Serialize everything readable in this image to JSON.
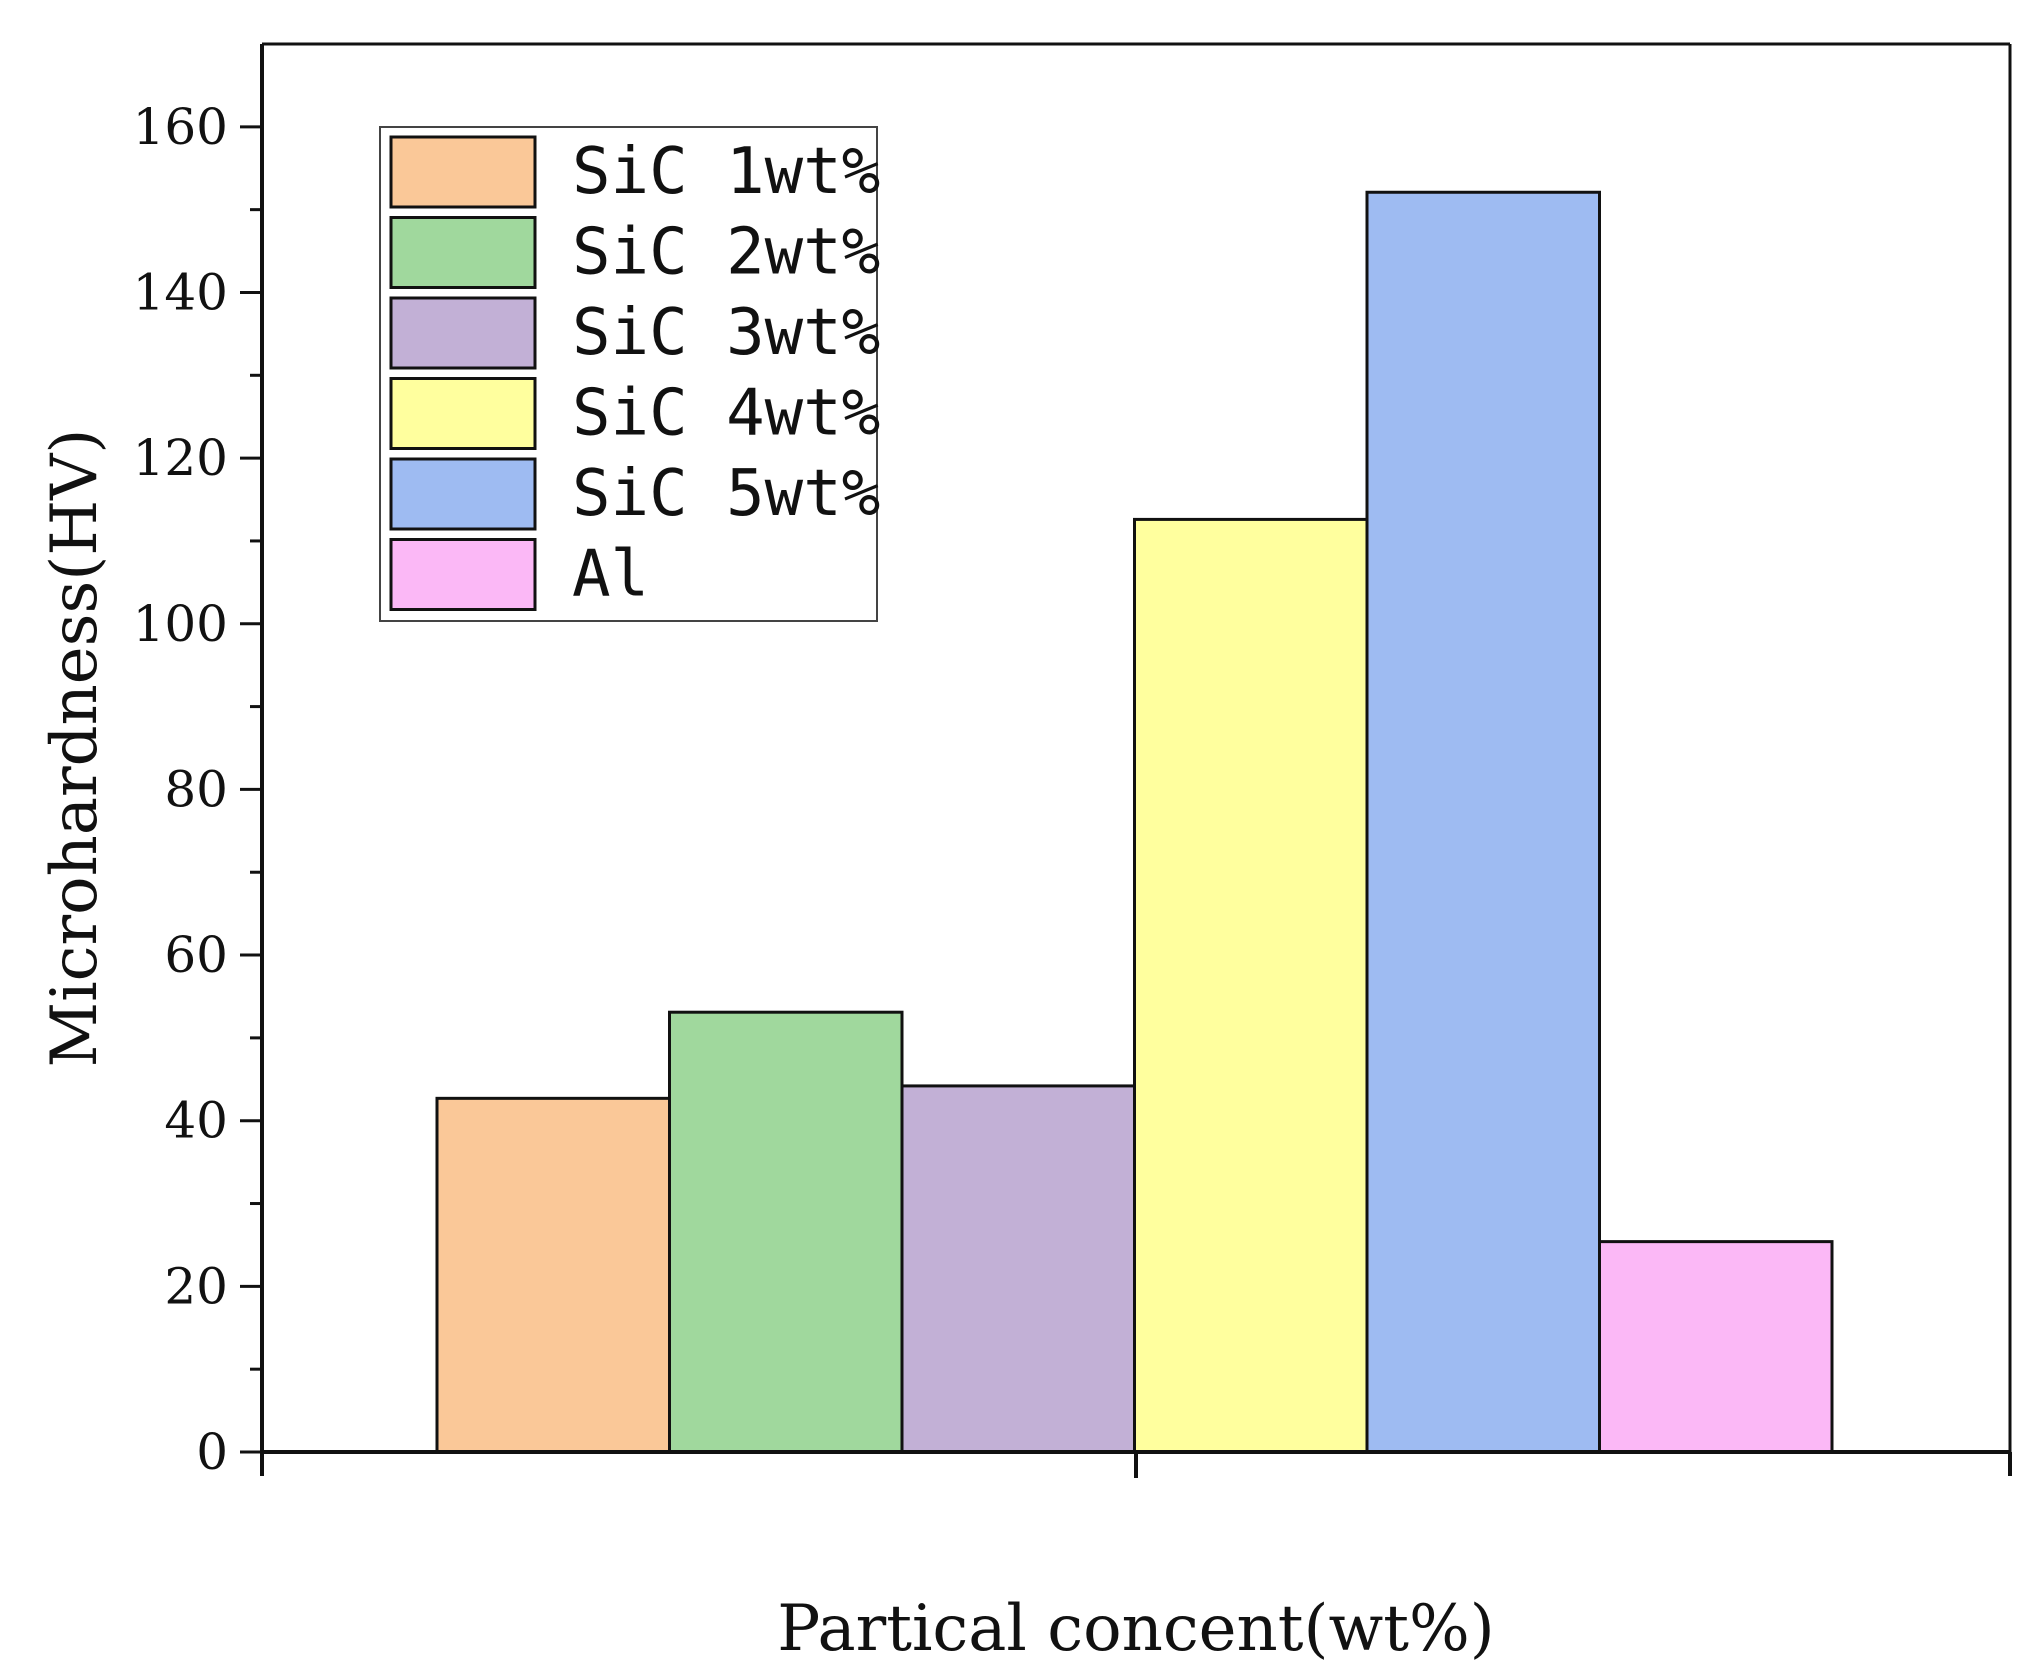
{
  "chart_data": {
    "type": "bar",
    "title": "",
    "xlabel": "Partical concent(wt%)",
    "ylabel": "Microhardness(HV)",
    "ylim": [
      0,
      170
    ],
    "yticks": [
      0,
      20,
      40,
      60,
      80,
      100,
      120,
      140,
      160
    ],
    "yminor_step": 10,
    "grid": false,
    "legend_position": "top-left",
    "series": [
      {
        "name": "SiC 1wt%",
        "value": 42.7,
        "color": "#FAC898"
      },
      {
        "name": "SiC 2wt%",
        "value": 53.1,
        "color": "#A0D89D"
      },
      {
        "name": "SiC 3wt%",
        "value": 44.2,
        "color": "#C2B0D6"
      },
      {
        "name": "SiC 4wt%",
        "value": 112.6,
        "color": "#FFFF9E"
      },
      {
        "name": "SiC 5wt%",
        "value": 152.1,
        "color": "#9EBBF2"
      },
      {
        "name": "Al",
        "value": 25.4,
        "color": "#FBB8F6"
      }
    ]
  }
}
